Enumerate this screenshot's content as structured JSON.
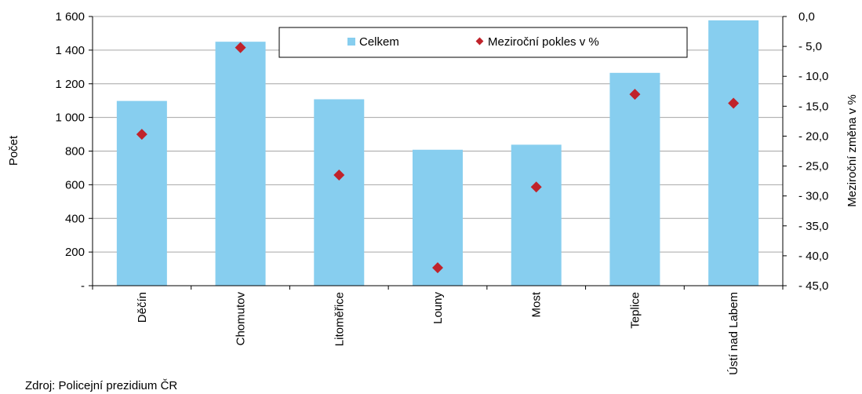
{
  "source_note": "Zdroj: Policejní prezidium ČR",
  "chart_data": {
    "type": "bar",
    "categories": [
      "Děčín",
      "Chomutov",
      "Litoměřice",
      "Louny",
      "Most",
      "Teplice",
      "Ústí nad Labem"
    ],
    "series": [
      {
        "name": "Celkem",
        "type": "bar",
        "axis": "left",
        "color": "#87CEEF",
        "values": [
          1098,
          1450,
          1108,
          808,
          838,
          1265,
          1577
        ]
      },
      {
        "name": "Meziroční pokles v %",
        "type": "scatter",
        "axis": "right",
        "color": "#C0232B",
        "values": [
          -19.7,
          -5.2,
          -26.5,
          -42.0,
          -28.5,
          -13.0,
          -14.5
        ]
      }
    ],
    "ylabel": "Počet",
    "ylabel_right": "Meziroční změna v %",
    "ylim": [
      0,
      1600
    ],
    "ylim_right": [
      -45,
      0
    ],
    "y_ticks": [
      0,
      200,
      400,
      600,
      800,
      1000,
      1200,
      1400,
      1600
    ],
    "y_tick_labels": [
      "-",
      "200",
      "400",
      "600",
      "800",
      "1 000",
      "1 200",
      "1 400",
      "1 600"
    ],
    "y_right_ticks": [
      0,
      -5,
      -10,
      -15,
      -20,
      -25,
      -30,
      -35,
      -40,
      -45
    ],
    "y_right_tick_labels": [
      "0,0",
      "- 5,0",
      "- 10,0",
      "- 15,0",
      "- 20,0",
      "- 25,0",
      "- 30,0",
      "- 35,0",
      "- 40,0",
      "- 45,0"
    ],
    "grid": true,
    "legend_position": "top-center"
  }
}
